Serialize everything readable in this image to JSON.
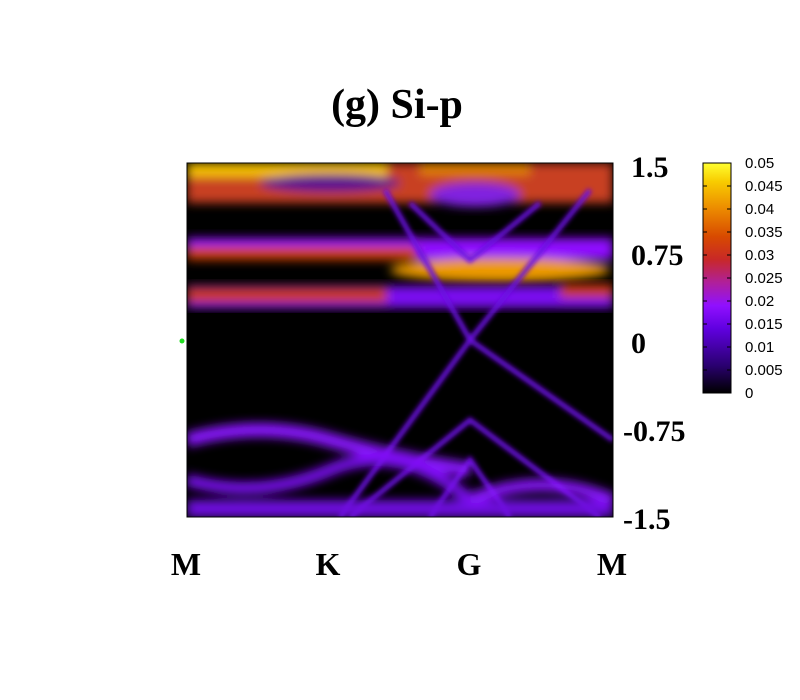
{
  "chart_data": {
    "type": "heatmap",
    "title": "(g) Si-p",
    "x_tick_labels": [
      "M",
      "K",
      "G",
      "M"
    ],
    "y_tick_labels": [
      "1.5",
      "0.75",
      "0",
      "-0.75",
      "-1.5"
    ],
    "y_ticks": [
      1.5,
      0.75,
      0,
      -0.75,
      -1.5
    ],
    "ylim": [
      -1.5,
      1.5
    ],
    "colorbar": {
      "range": [
        0,
        0.05
      ],
      "tick_labels": [
        "0.05",
        "0.045",
        "0.04",
        "0.035",
        "0.03",
        "0.025",
        "0.02",
        "0.015",
        "0.01",
        "0.005",
        "0"
      ],
      "ticks": [
        0.05,
        0.045,
        0.04,
        0.035,
        0.03,
        0.025,
        0.02,
        0.015,
        0.01,
        0.005,
        0
      ],
      "colormap": [
        "#000000",
        "#5c00c8",
        "#9b14ff",
        "#b8246e",
        "#d0280a",
        "#e86e00",
        "#f5b400",
        "#ffff40"
      ]
    },
    "bands": [
      {
        "segment": "M-K",
        "energy": 1.35,
        "weight": 0.035
      },
      {
        "segment": "M-K",
        "energy": 0.75,
        "weight": 0.03
      },
      {
        "segment": "M-K",
        "energy": 0.42,
        "weight": 0.028
      },
      {
        "segment": "G",
        "energy": 0.6,
        "weight": 0.04
      },
      {
        "segment": "all",
        "energy": -0.9,
        "weight": 0.014
      },
      {
        "segment": "all",
        "energy": -1.3,
        "weight": 0.012
      }
    ],
    "grid": false,
    "legend": "colorbar-right"
  }
}
